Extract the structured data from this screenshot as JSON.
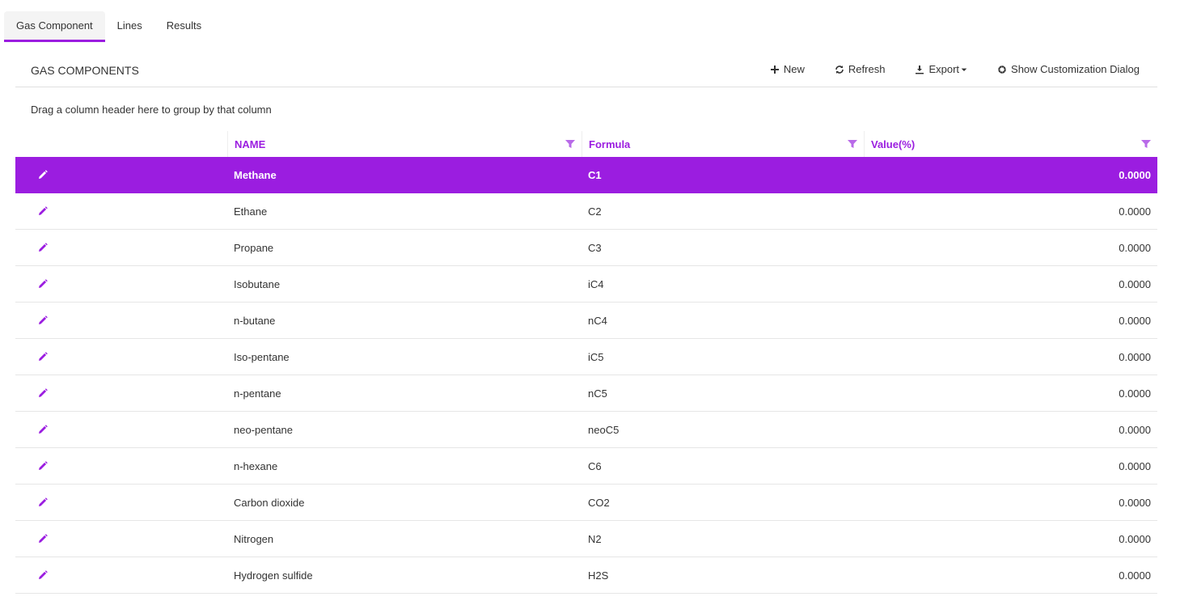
{
  "tabs": [
    {
      "label": "Gas Component",
      "active": true
    },
    {
      "label": "Lines"
    },
    {
      "label": "Results"
    }
  ],
  "toolbar": {
    "title": "GAS COMPONENTS",
    "new_label": "New",
    "refresh_label": "Refresh",
    "export_label": "Export",
    "customize_label": "Show Customization Dialog"
  },
  "group_hint": "Drag a column header here to group by that column",
  "columns": [
    "NAME",
    "Formula",
    "Value(%)"
  ],
  "accent": "#9b1de0",
  "rows": [
    {
      "name": "Methane",
      "formula": "C1",
      "value": "0.0000",
      "selected": true
    },
    {
      "name": "Ethane",
      "formula": "C2",
      "value": "0.0000"
    },
    {
      "name": "Propane",
      "formula": "C3",
      "value": "0.0000"
    },
    {
      "name": "Isobutane",
      "formula": "iC4",
      "value": "0.0000"
    },
    {
      "name": "n-butane",
      "formula": "nC4",
      "value": "0.0000"
    },
    {
      "name": "Iso-pentane",
      "formula": "iC5",
      "value": "0.0000"
    },
    {
      "name": "n-pentane",
      "formula": "nC5",
      "value": "0.0000"
    },
    {
      "name": "neo-pentane",
      "formula": "neoC5",
      "value": "0.0000"
    },
    {
      "name": "n-hexane",
      "formula": "C6",
      "value": "0.0000"
    },
    {
      "name": "Carbon dioxide",
      "formula": "CO2",
      "value": "0.0000"
    },
    {
      "name": "Nitrogen",
      "formula": "N2",
      "value": "0.0000"
    },
    {
      "name": "Hydrogen sulfide",
      "formula": "H2S",
      "value": "0.0000"
    }
  ]
}
